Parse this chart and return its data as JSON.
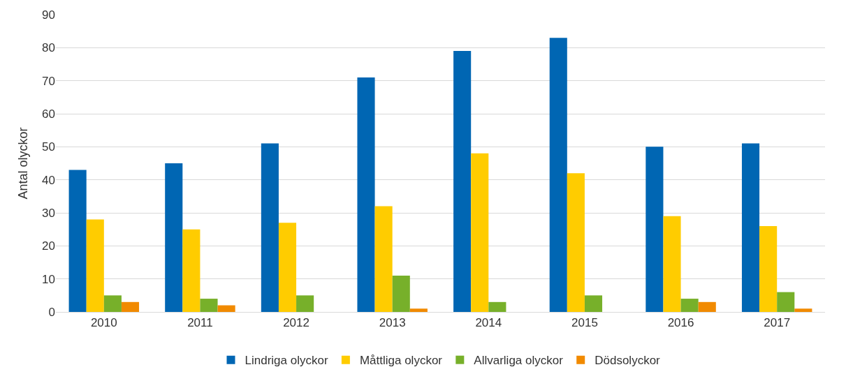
{
  "chart_data": {
    "type": "bar",
    "ylabel": "Antal olyckor",
    "categories": [
      "2010",
      "2011",
      "2012",
      "2013",
      "2014",
      "2015",
      "2016",
      "2017"
    ],
    "series": [
      {
        "name": "Lindriga olyckor",
        "color": "#0066b3",
        "values": [
          43,
          45,
          51,
          71,
          79,
          83,
          50,
          51
        ]
      },
      {
        "name": "Måttliga olyckor",
        "color": "#ffcc00",
        "values": [
          28,
          25,
          27,
          32,
          48,
          42,
          29,
          26
        ]
      },
      {
        "name": "Allvarliga olyckor",
        "color": "#77b02a",
        "values": [
          5,
          4,
          5,
          11,
          3,
          5,
          4,
          6
        ]
      },
      {
        "name": "Dödsolyckor",
        "color": "#f18a00",
        "values": [
          3,
          2,
          0,
          1,
          0,
          0,
          3,
          1
        ]
      }
    ],
    "ylim": [
      0,
      90
    ],
    "yticks": [
      0,
      10,
      20,
      30,
      40,
      50,
      60,
      70,
      80,
      90
    ],
    "grid": "y",
    "legend": "bottom"
  }
}
